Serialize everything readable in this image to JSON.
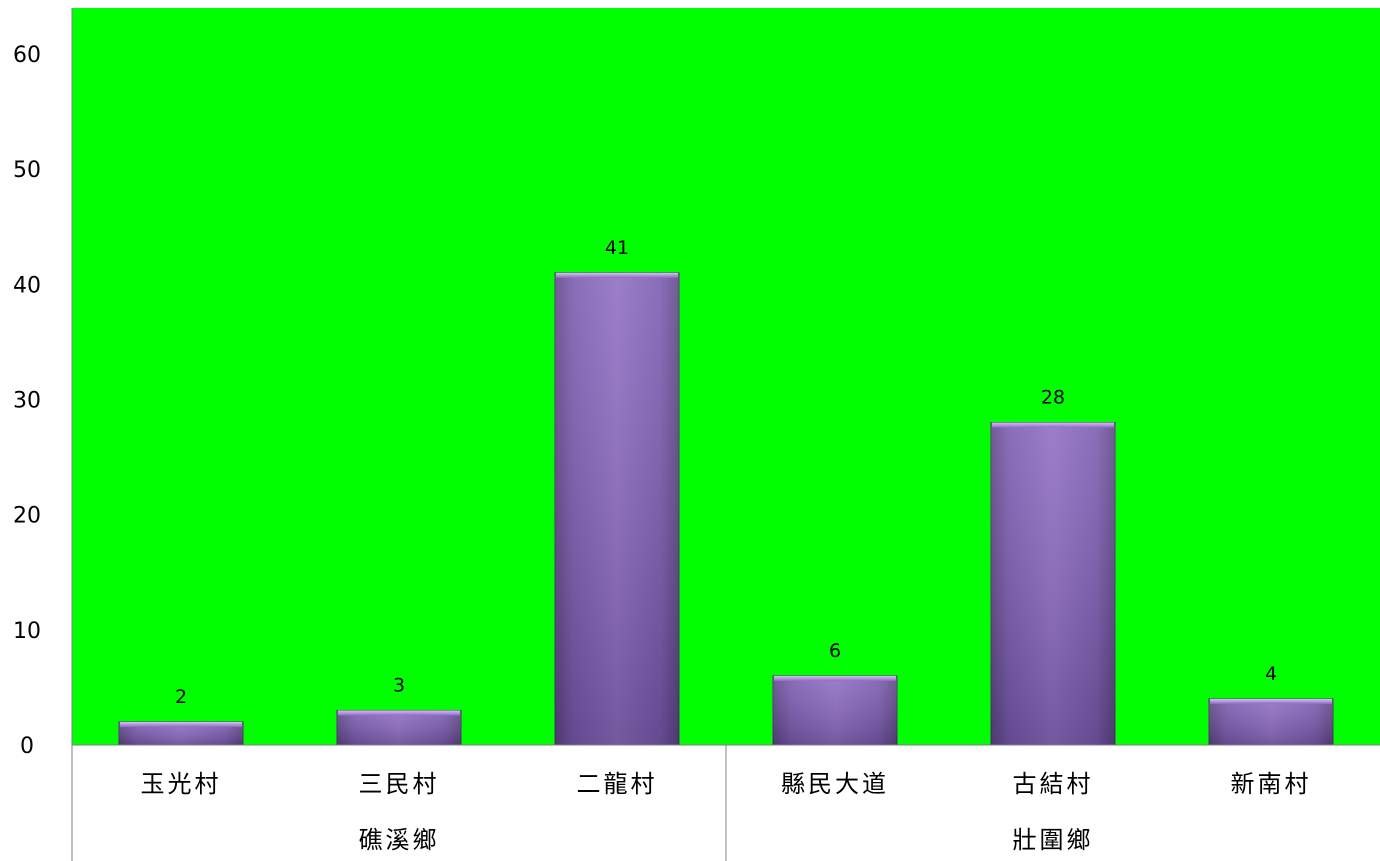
{
  "chart_data": {
    "type": "bar",
    "categories": [
      "玉光村",
      "三民村",
      "二龍村",
      "縣民大道",
      "古結村",
      "新南村"
    ],
    "groups": [
      {
        "label": "礁溪鄉",
        "categories": [
          "玉光村",
          "三民村",
          "二龍村"
        ]
      },
      {
        "label": "壯圍鄉",
        "categories": [
          "縣民大道",
          "古結村",
          "新南村"
        ]
      }
    ],
    "values": [
      2,
      3,
      41,
      6,
      28,
      4
    ],
    "data_labels": [
      "2",
      "3",
      "41",
      "6",
      "28",
      "4"
    ],
    "yticks": [
      "0",
      "10",
      "20",
      "30",
      "40",
      "50",
      "60"
    ],
    "ylim": [
      0,
      64
    ],
    "grid": false,
    "legend": "none",
    "colors": {
      "plot_background": "#00ff00",
      "bar_light": "#8e6cc2",
      "bar_dark": "#5e4586",
      "bar_edge": "#4b356e",
      "axis_line": "#808080"
    }
  }
}
